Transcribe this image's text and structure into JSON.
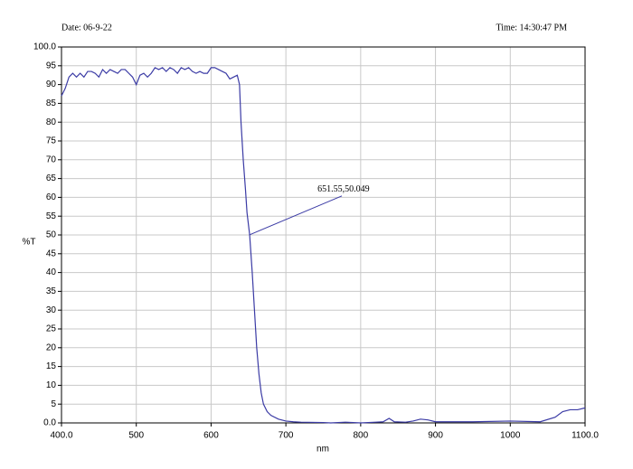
{
  "chart_data": {
    "type": "line",
    "header_left": "Date: 06-9-22",
    "header_right": "Time: 14:30:47 PM",
    "x_label": "nm",
    "y_label": "%T",
    "grid": true,
    "xlim": [
      400,
      1100
    ],
    "ylim": [
      0,
      100
    ],
    "xticks": [
      {
        "value": 400,
        "label": "400.0"
      },
      500,
      600,
      700,
      800,
      900,
      1000,
      {
        "value": 1100,
        "label": "1100.0"
      }
    ],
    "yticks": [
      {
        "value": 0,
        "label": "0.0"
      },
      5,
      10,
      15,
      20,
      25,
      30,
      35,
      40,
      45,
      50,
      55,
      60,
      65,
      70,
      75,
      80,
      85,
      90,
      95,
      {
        "value": 100,
        "label": "100.0"
      }
    ],
    "annotation": {
      "text": "651.55,50.049",
      "x": 651.55,
      "y": 50.049
    },
    "series": [
      {
        "color": "#3b3ba5",
        "x": [
          400,
          405,
          410,
          415,
          420,
          425,
          430,
          435,
          440,
          445,
          450,
          455,
          460,
          465,
          470,
          475,
          480,
          485,
          490,
          495,
          500,
          505,
          510,
          515,
          520,
          525,
          530,
          535,
          540,
          545,
          550,
          555,
          560,
          565,
          570,
          575,
          580,
          585,
          590,
          595,
          600,
          605,
          610,
          615,
          620,
          625,
          630,
          635,
          638,
          640,
          643,
          646,
          648,
          651.55,
          655,
          658,
          661,
          664,
          667,
          670,
          675,
          680,
          690,
          700,
          710,
          720,
          750,
          760,
          780,
          800,
          820,
          830,
          838,
          845,
          860,
          870,
          880,
          890,
          900,
          950,
          1000,
          1040,
          1060,
          1070,
          1080,
          1090,
          1100
        ],
        "values": [
          87,
          89,
          92,
          93,
          92,
          93,
          92,
          93.5,
          93.5,
          93,
          92,
          94,
          93,
          94,
          93.5,
          93,
          94,
          94,
          93,
          92,
          90,
          92.5,
          93,
          92,
          93,
          94.5,
          94,
          94.5,
          93.5,
          94.5,
          94,
          93,
          94.5,
          94,
          94.5,
          93.5,
          93,
          93.5,
          93,
          93,
          94.5,
          94.5,
          94,
          93.5,
          93,
          91.5,
          92,
          92.5,
          90,
          80,
          70,
          62,
          56,
          50.049,
          40,
          30,
          20,
          13,
          8,
          5,
          3,
          2,
          1,
          0.5,
          0.3,
          0.2,
          0.1,
          0,
          0.2,
          0,
          0.2,
          0.3,
          1.2,
          0.3,
          0.2,
          0.5,
          1,
          0.8,
          0.3,
          0.3,
          0.5,
          0.3,
          1.5,
          3,
          3.5,
          3.5,
          4
        ]
      }
    ]
  }
}
